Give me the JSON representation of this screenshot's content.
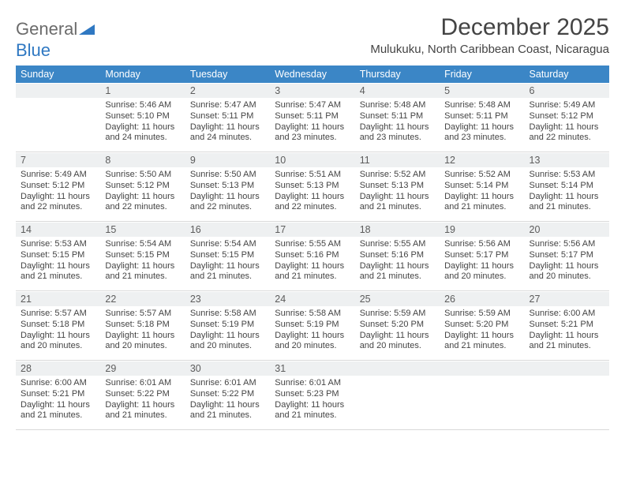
{
  "brand": {
    "part1": "General",
    "part2": "Blue"
  },
  "title": "December 2025",
  "location": "Mulukuku, North Caribbean Coast, Nicaragua",
  "colors": {
    "header_bg": "#3b86c6",
    "header_fg": "#ffffff",
    "daynum_bg": "#eef0f1",
    "text": "#444444",
    "background": "#ffffff",
    "brand_gray": "#6b6b6b",
    "brand_blue": "#2f78c2"
  },
  "weekdays": [
    "Sunday",
    "Monday",
    "Tuesday",
    "Wednesday",
    "Thursday",
    "Friday",
    "Saturday"
  ],
  "layout": {
    "first_weekday_index": 1,
    "days_in_month": 31,
    "columns": 7,
    "rows": 5
  },
  "days": [
    {
      "n": 1,
      "sunrise": "5:46 AM",
      "sunset": "5:10 PM",
      "daylight": "11 hours and 24 minutes."
    },
    {
      "n": 2,
      "sunrise": "5:47 AM",
      "sunset": "5:11 PM",
      "daylight": "11 hours and 24 minutes."
    },
    {
      "n": 3,
      "sunrise": "5:47 AM",
      "sunset": "5:11 PM",
      "daylight": "11 hours and 23 minutes."
    },
    {
      "n": 4,
      "sunrise": "5:48 AM",
      "sunset": "5:11 PM",
      "daylight": "11 hours and 23 minutes."
    },
    {
      "n": 5,
      "sunrise": "5:48 AM",
      "sunset": "5:11 PM",
      "daylight": "11 hours and 23 minutes."
    },
    {
      "n": 6,
      "sunrise": "5:49 AM",
      "sunset": "5:12 PM",
      "daylight": "11 hours and 22 minutes."
    },
    {
      "n": 7,
      "sunrise": "5:49 AM",
      "sunset": "5:12 PM",
      "daylight": "11 hours and 22 minutes."
    },
    {
      "n": 8,
      "sunrise": "5:50 AM",
      "sunset": "5:12 PM",
      "daylight": "11 hours and 22 minutes."
    },
    {
      "n": 9,
      "sunrise": "5:50 AM",
      "sunset": "5:13 PM",
      "daylight": "11 hours and 22 minutes."
    },
    {
      "n": 10,
      "sunrise": "5:51 AM",
      "sunset": "5:13 PM",
      "daylight": "11 hours and 22 minutes."
    },
    {
      "n": 11,
      "sunrise": "5:52 AM",
      "sunset": "5:13 PM",
      "daylight": "11 hours and 21 minutes."
    },
    {
      "n": 12,
      "sunrise": "5:52 AM",
      "sunset": "5:14 PM",
      "daylight": "11 hours and 21 minutes."
    },
    {
      "n": 13,
      "sunrise": "5:53 AM",
      "sunset": "5:14 PM",
      "daylight": "11 hours and 21 minutes."
    },
    {
      "n": 14,
      "sunrise": "5:53 AM",
      "sunset": "5:15 PM",
      "daylight": "11 hours and 21 minutes."
    },
    {
      "n": 15,
      "sunrise": "5:54 AM",
      "sunset": "5:15 PM",
      "daylight": "11 hours and 21 minutes."
    },
    {
      "n": 16,
      "sunrise": "5:54 AM",
      "sunset": "5:15 PM",
      "daylight": "11 hours and 21 minutes."
    },
    {
      "n": 17,
      "sunrise": "5:55 AM",
      "sunset": "5:16 PM",
      "daylight": "11 hours and 21 minutes."
    },
    {
      "n": 18,
      "sunrise": "5:55 AM",
      "sunset": "5:16 PM",
      "daylight": "11 hours and 21 minutes."
    },
    {
      "n": 19,
      "sunrise": "5:56 AM",
      "sunset": "5:17 PM",
      "daylight": "11 hours and 20 minutes."
    },
    {
      "n": 20,
      "sunrise": "5:56 AM",
      "sunset": "5:17 PM",
      "daylight": "11 hours and 20 minutes."
    },
    {
      "n": 21,
      "sunrise": "5:57 AM",
      "sunset": "5:18 PM",
      "daylight": "11 hours and 20 minutes."
    },
    {
      "n": 22,
      "sunrise": "5:57 AM",
      "sunset": "5:18 PM",
      "daylight": "11 hours and 20 minutes."
    },
    {
      "n": 23,
      "sunrise": "5:58 AM",
      "sunset": "5:19 PM",
      "daylight": "11 hours and 20 minutes."
    },
    {
      "n": 24,
      "sunrise": "5:58 AM",
      "sunset": "5:19 PM",
      "daylight": "11 hours and 20 minutes."
    },
    {
      "n": 25,
      "sunrise": "5:59 AM",
      "sunset": "5:20 PM",
      "daylight": "11 hours and 20 minutes."
    },
    {
      "n": 26,
      "sunrise": "5:59 AM",
      "sunset": "5:20 PM",
      "daylight": "11 hours and 21 minutes."
    },
    {
      "n": 27,
      "sunrise": "6:00 AM",
      "sunset": "5:21 PM",
      "daylight": "11 hours and 21 minutes."
    },
    {
      "n": 28,
      "sunrise": "6:00 AM",
      "sunset": "5:21 PM",
      "daylight": "11 hours and 21 minutes."
    },
    {
      "n": 29,
      "sunrise": "6:01 AM",
      "sunset": "5:22 PM",
      "daylight": "11 hours and 21 minutes."
    },
    {
      "n": 30,
      "sunrise": "6:01 AM",
      "sunset": "5:22 PM",
      "daylight": "11 hours and 21 minutes."
    },
    {
      "n": 31,
      "sunrise": "6:01 AM",
      "sunset": "5:23 PM",
      "daylight": "11 hours and 21 minutes."
    }
  ],
  "labels": {
    "sunrise": "Sunrise:",
    "sunset": "Sunset:",
    "daylight": "Daylight:"
  }
}
